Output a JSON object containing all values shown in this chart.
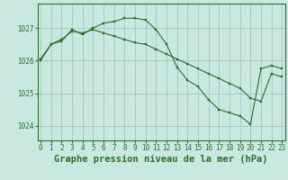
{
  "title": "Graphe pression niveau de la mer (hPa)",
  "background_color": "#c8e8e0",
  "grid_color": "#9dbfb8",
  "line_color": "#2d6e2d",
  "x_values": [
    0,
    1,
    2,
    3,
    4,
    5,
    6,
    7,
    8,
    9,
    10,
    11,
    12,
    13,
    14,
    15,
    16,
    17,
    18,
    19,
    20,
    21,
    22,
    23
  ],
  "line1": [
    1026.0,
    1026.5,
    1026.6,
    1026.95,
    1026.8,
    1027.0,
    1027.15,
    1027.2,
    1027.3,
    1027.3,
    1027.25,
    1026.95,
    1026.5,
    1025.8,
    1025.4,
    1025.2,
    1024.8,
    1024.5,
    1024.4,
    1024.3,
    1024.05,
    1025.75,
    1025.85,
    1025.75
  ],
  "line2": [
    1026.05,
    1026.5,
    1026.65,
    1026.9,
    1026.85,
    1026.95,
    1026.85,
    1026.75,
    1026.65,
    1026.55,
    1026.5,
    1026.35,
    1026.2,
    1026.05,
    1025.9,
    1025.75,
    1025.6,
    1025.45,
    1025.3,
    1025.15,
    1024.85,
    1024.75,
    1025.6,
    1025.5
  ],
  "yticks": [
    1024,
    1025,
    1026,
    1027
  ],
  "ylim": [
    1023.55,
    1027.75
  ],
  "xlim": [
    -0.3,
    23.3
  ],
  "title_fontsize": 7.5,
  "tick_fontsize": 5.5,
  "figwidth": 3.2,
  "figheight": 2.0,
  "dpi": 100
}
